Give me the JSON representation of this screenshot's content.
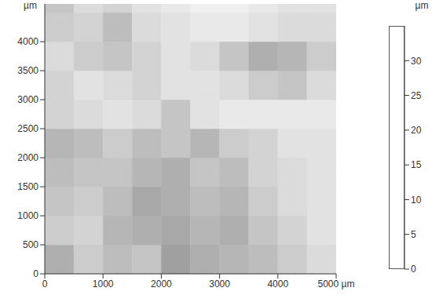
{
  "chart_data": {
    "type": "heatmap",
    "ylabel": "µm",
    "xlim": [
      0,
      5000
    ],
    "ylim": [
      0,
      4650
    ],
    "xticks": [
      0,
      1000,
      2000,
      3000,
      4000,
      {
        "value": 5000,
        "label": "5000 µm"
      }
    ],
    "yticks": [
      0,
      500,
      1000,
      1500,
      2000,
      2500,
      3000,
      3500,
      4000
    ],
    "x_edges": [
      0,
      500,
      1000,
      1500,
      2000,
      2500,
      3000,
      3500,
      4000,
      4500,
      5000
    ],
    "y_edges": [
      0,
      500,
      1000,
      1500,
      2000,
      2500,
      3000,
      3500,
      4000,
      4500,
      4650
    ],
    "cells": [
      [
        24,
        28,
        26,
        27,
        22,
        24,
        25,
        26,
        28,
        30
      ],
      [
        28,
        29,
        25,
        24,
        23,
        25,
        24,
        27,
        29,
        31
      ],
      [
        27,
        28,
        26,
        23,
        24,
        26,
        25,
        28,
        30,
        31
      ],
      [
        26,
        27,
        27,
        25,
        24,
        27,
        26,
        29,
        30,
        31
      ],
      [
        25,
        26,
        28,
        26,
        27,
        25,
        28,
        29,
        31,
        31
      ],
      [
        29,
        30,
        31,
        30,
        27,
        31,
        32,
        32,
        32,
        32
      ],
      [
        29,
        31,
        30,
        29,
        31,
        31,
        30,
        28,
        27,
        30
      ],
      [
        30,
        28,
        27,
        29,
        31,
        30,
        27,
        24,
        25,
        28
      ],
      [
        28,
        29,
        26,
        30,
        31,
        32,
        32,
        31,
        30,
        30
      ],
      [
        27,
        30,
        29,
        31,
        32,
        33,
        33,
        32,
        31,
        31
      ]
    ],
    "colorbar": {
      "label": "µm",
      "range": [
        0,
        35
      ],
      "ticks": [
        0,
        5,
        10,
        15,
        20,
        25,
        30
      ]
    }
  }
}
